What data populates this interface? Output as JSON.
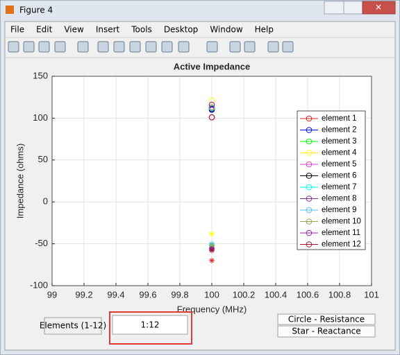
{
  "window": {
    "title": "Figure 4",
    "menu": [
      "File",
      "Edit",
      "View",
      "Insert",
      "Tools",
      "Desktop",
      "Window",
      "Help"
    ]
  },
  "controls": {
    "label": "Elements (1-12)",
    "input": "1:12",
    "buttons": [
      "Circle - Resistance",
      "Star - Reactance"
    ]
  },
  "chart_data": {
    "type": "scatter",
    "title": "Active Impedance",
    "xlabel": "Frequency (MHz)",
    "ylabel": "Impedance (ohms)",
    "xlim": [
      99,
      101
    ],
    "xticks": [
      99,
      99.2,
      99.4,
      99.6,
      99.8,
      100,
      100.2,
      100.4,
      100.6,
      100.8,
      101
    ],
    "ylim": [
      -100,
      150
    ],
    "yticks": [
      -100,
      -50,
      0,
      50,
      100,
      150
    ],
    "grid": true,
    "series": [
      {
        "name": "element 1",
        "color": "#e02020",
        "x": [
          100
        ],
        "resistance": [
          101
        ],
        "reactance": [
          -70
        ]
      },
      {
        "name": "element 2",
        "color": "#0000ff",
        "x": [
          100
        ],
        "resistance": [
          110
        ],
        "reactance": [
          -52
        ]
      },
      {
        "name": "element 3",
        "color": "#00ff00",
        "x": [
          100
        ],
        "resistance": [
          112
        ],
        "reactance": [
          -53
        ]
      },
      {
        "name": "element 4",
        "color": "#ffff00",
        "x": [
          100
        ],
        "resistance": [
          121
        ],
        "reactance": [
          -38
        ]
      },
      {
        "name": "element 5",
        "color": "#d040d0",
        "x": [
          100
        ],
        "resistance": [
          116
        ],
        "reactance": [
          -57
        ]
      },
      {
        "name": "element 6",
        "color": "#000000",
        "x": [
          100
        ],
        "resistance": [
          111
        ],
        "reactance": [
          -55
        ]
      },
      {
        "name": "element 7",
        "color": "#00ffff",
        "x": [
          100
        ],
        "resistance": [
          112
        ],
        "reactance": [
          -51
        ]
      },
      {
        "name": "element 8",
        "color": "#7e2f8e",
        "x": [
          100
        ],
        "resistance": [
          113
        ],
        "reactance": [
          -55
        ]
      },
      {
        "name": "element 9",
        "color": "#4dbeee",
        "x": [
          100
        ],
        "resistance": [
          112
        ],
        "reactance": [
          -50
        ]
      },
      {
        "name": "element 10",
        "color": "#a0a050",
        "x": [
          100
        ],
        "resistance": [
          113
        ],
        "reactance": [
          -52
        ]
      },
      {
        "name": "element 11",
        "color": "#a020a0",
        "x": [
          100
        ],
        "resistance": [
          116
        ],
        "reactance": [
          -56
        ]
      },
      {
        "name": "element 12",
        "color": "#a2142f",
        "x": [
          100
        ],
        "resistance": [
          101
        ],
        "reactance": [
          -58
        ]
      }
    ]
  }
}
